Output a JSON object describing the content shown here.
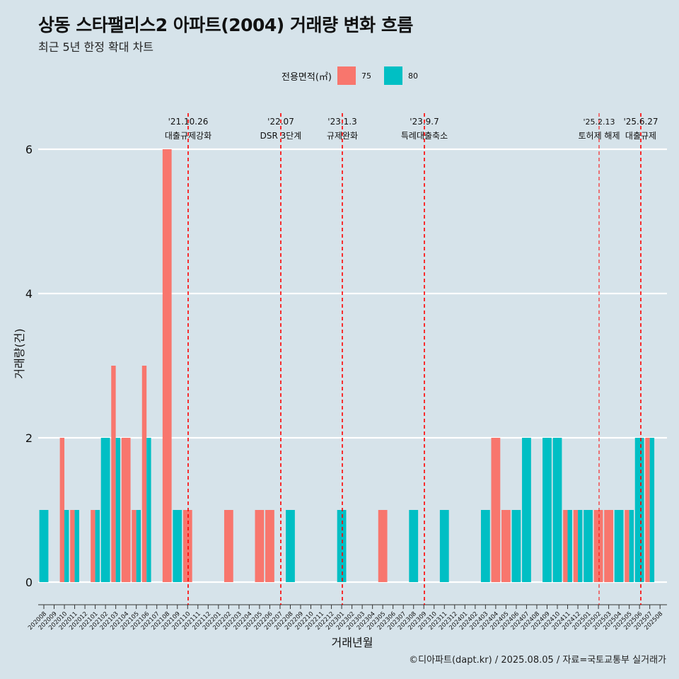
{
  "header": {
    "title": "상동 스타팰리스2 아파트(2004) 거래량 변화 흐름",
    "subtitle": "최근 5년 한정 확대 차트"
  },
  "legend": {
    "title": "전용면적(㎡)",
    "items": [
      {
        "label": "75",
        "color": "#F8766D"
      },
      {
        "label": "80",
        "color": "#00BFC4"
      }
    ]
  },
  "caption": "©디아파트(dapt.kr) / 2025.08.05 / 자료=국토교통부 실거래가",
  "chart_data": {
    "type": "bar",
    "xlabel": "거래년월",
    "ylabel": "거래량(건)",
    "ylim": [
      0,
      6
    ],
    "yticks": [
      0,
      2,
      4,
      6
    ],
    "grid": true,
    "legend_position": "top",
    "categories": [
      "202008",
      "202009",
      "202010",
      "202011",
      "202012",
      "202101",
      "202102",
      "202103",
      "202104",
      "202105",
      "202106",
      "202107",
      "202108",
      "202109",
      "202110",
      "202111",
      "202112",
      "202201",
      "202202",
      "202203",
      "202204",
      "202205",
      "202206",
      "202207",
      "202208",
      "202209",
      "202210",
      "202211",
      "202212",
      "202301",
      "202302",
      "202303",
      "202304",
      "202305",
      "202306",
      "202307",
      "202308",
      "202309",
      "202310",
      "202311",
      "202312",
      "202401",
      "202402",
      "202403",
      "202404",
      "202405",
      "202406",
      "202407",
      "202408",
      "202409",
      "202410",
      "202411",
      "202412",
      "202501",
      "202502",
      "202503",
      "202504",
      "202505",
      "202506",
      "202507",
      "202508"
    ],
    "series": [
      {
        "name": "75",
        "color": "#F8766D",
        "values": [
          0,
          0,
          2,
          1,
          0,
          1,
          0,
          3,
          2,
          1,
          3,
          0,
          6,
          0,
          1,
          0,
          0,
          0,
          1,
          0,
          0,
          1,
          1,
          0,
          0,
          0,
          0,
          0,
          0,
          0,
          0,
          0,
          0,
          1,
          0,
          0,
          0,
          0,
          0,
          0,
          0,
          0,
          0,
          0,
          2,
          1,
          0,
          0,
          0,
          0,
          0,
          1,
          1,
          0,
          1,
          1,
          0,
          1,
          0,
          2,
          0
        ]
      },
      {
        "name": "80",
        "color": "#00BFC4",
        "values": [
          1,
          0,
          1,
          1,
          0,
          1,
          2,
          2,
          0,
          1,
          2,
          0,
          0,
          1,
          0,
          0,
          0,
          0,
          0,
          0,
          0,
          0,
          0,
          0,
          1,
          0,
          0,
          0,
          0,
          1,
          0,
          0,
          0,
          0,
          0,
          0,
          1,
          0,
          0,
          1,
          0,
          0,
          0,
          1,
          0,
          0,
          1,
          2,
          0,
          2,
          2,
          1,
          1,
          1,
          0,
          0,
          1,
          1,
          2,
          2,
          0
        ]
      }
    ],
    "events": [
      {
        "date": "202110",
        "date_label": "'21.10.26",
        "label": "대출규제강화"
      },
      {
        "date": "202207",
        "date_label": "'22.07",
        "label": "DSR 3단계"
      },
      {
        "date": "202301",
        "date_label": "'23.1.3",
        "label": "규제완화"
      },
      {
        "date": "202309",
        "date_label": "'23.9.7",
        "label": "특례대출축소"
      },
      {
        "date": "202502",
        "date_label": "'25.2.13",
        "label": "토허제 해제"
      },
      {
        "date": "202506",
        "date_label": "'25.6.27",
        "label": "대출규제"
      }
    ]
  }
}
